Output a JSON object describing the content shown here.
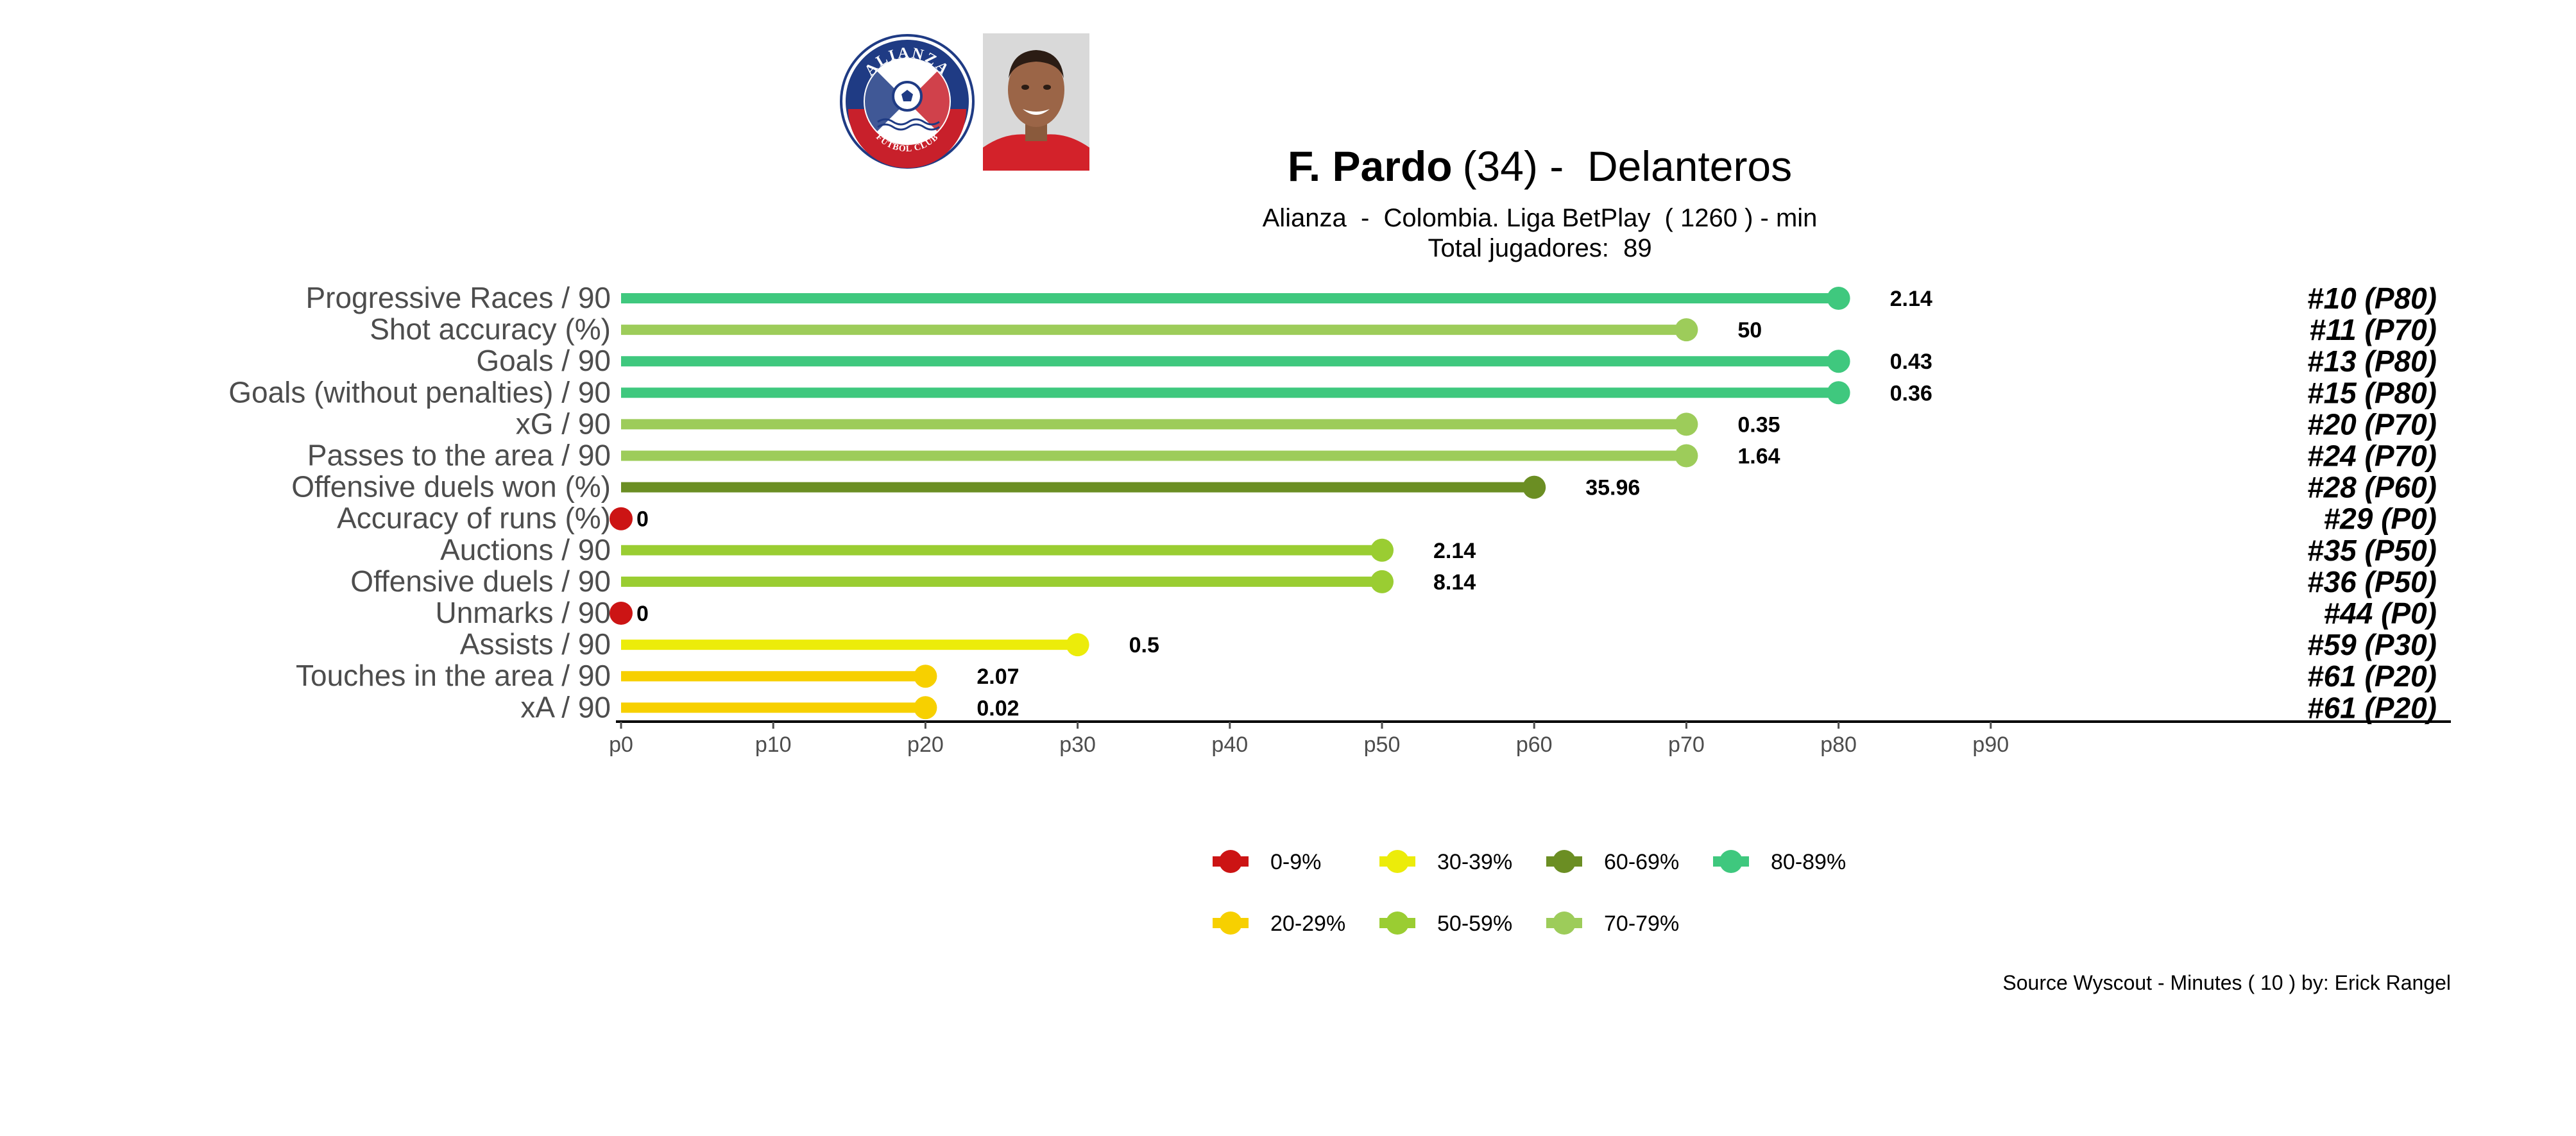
{
  "header": {
    "player_name": "F. Pardo",
    "player_age": "(34)",
    "separator": " -  ",
    "position": "Delanteros",
    "subtitle": "Alianza  -  Colombia. Liga BetPlay  ( 1260 ) - min",
    "total_players": "Total jugadores:  89",
    "club_logo": {
      "top_text": "ALIANZA",
      "bottom_text": "FUTBOL CLUB",
      "colors": {
        "navy": "#1f3b84",
        "red": "#c8202b",
        "white": "#ffffff"
      }
    },
    "player_photo_icon": "player-portrait"
  },
  "chart_data": {
    "type": "bar",
    "style": "lollipop",
    "orientation": "horizontal",
    "xlim": [
      0,
      100
    ],
    "x_ticks": [
      0,
      10,
      20,
      30,
      40,
      50,
      60,
      70,
      80,
      90
    ],
    "x_tick_labels": [
      "p0",
      "p10",
      "p20",
      "p30",
      "p40",
      "p50",
      "p60",
      "p70",
      "p80",
      "p90"
    ],
    "grid": false,
    "metrics": [
      {
        "label": "Progressive Races / 90",
        "percentile": 80,
        "value_label": "2.14",
        "rank_label": "#10 (P80)",
        "band": "80-89%"
      },
      {
        "label": "Shot accuracy (%)",
        "percentile": 70,
        "value_label": "50",
        "rank_label": "#11 (P70)",
        "band": "70-79%"
      },
      {
        "label": "Goals / 90",
        "percentile": 80,
        "value_label": "0.43",
        "rank_label": "#13 (P80)",
        "band": "80-89%"
      },
      {
        "label": "Goals (without penalties) / 90",
        "percentile": 80,
        "value_label": "0.36",
        "rank_label": "#15 (P80)",
        "band": "80-89%"
      },
      {
        "label": "xG / 90",
        "percentile": 70,
        "value_label": "0.35",
        "rank_label": "#20 (P70)",
        "band": "70-79%"
      },
      {
        "label": "Passes to the area / 90",
        "percentile": 70,
        "value_label": "1.64",
        "rank_label": "#24 (P70)",
        "band": "70-79%"
      },
      {
        "label": "Offensive duels won (%)",
        "percentile": 60,
        "value_label": "35.96",
        "rank_label": "#28 (P60)",
        "band": "60-69%"
      },
      {
        "label": "Accuracy of runs (%)",
        "percentile": 0,
        "value_label": "0",
        "rank_label": "#29 (P0)",
        "band": "0-9%"
      },
      {
        "label": "Auctions / 90",
        "percentile": 50,
        "value_label": "2.14",
        "rank_label": "#35 (P50)",
        "band": "50-59%"
      },
      {
        "label": "Offensive duels / 90",
        "percentile": 50,
        "value_label": "8.14",
        "rank_label": "#36 (P50)",
        "band": "50-59%"
      },
      {
        "label": "Unmarks / 90",
        "percentile": 0,
        "value_label": "0",
        "rank_label": "#44 (P0)",
        "band": "0-9%"
      },
      {
        "label": "Assists / 90",
        "percentile": 30,
        "value_label": "0.5",
        "rank_label": "#59 (P30)",
        "band": "30-39%"
      },
      {
        "label": "Touches in the area / 90",
        "percentile": 20,
        "value_label": "2.07",
        "rank_label": "#61 (P20)",
        "band": "20-29%"
      },
      {
        "label": "xA / 90",
        "percentile": 20,
        "value_label": "0.02",
        "rank_label": "#61 (P20)",
        "band": "20-29%"
      }
    ],
    "legend": {
      "placement": "bottom",
      "rows": [
        [
          {
            "label": "0-9%",
            "color": "#cc1414"
          },
          {
            "label": "30-39%",
            "color": "#ecec0a"
          },
          {
            "label": "60-69%",
            "color": "#6b8e23"
          },
          {
            "label": "80-89%",
            "color": "#3fc87e"
          }
        ],
        [
          {
            "label": "20-29%",
            "color": "#f7d000"
          },
          {
            "label": "50-59%",
            "color": "#9acd32"
          },
          {
            "label": "70-79%",
            "color": "#9dcc5a"
          }
        ]
      ]
    },
    "band_colors": {
      "0-9%": "#cc1414",
      "20-29%": "#f7d000",
      "30-39%": "#ecec0a",
      "50-59%": "#9acd32",
      "60-69%": "#6b8e23",
      "70-79%": "#9dcc5a",
      "80-89%": "#3fc87e"
    }
  },
  "footer": {
    "source": "Source Wyscout - Minutes ( 10 ) by: Erick Rangel"
  }
}
